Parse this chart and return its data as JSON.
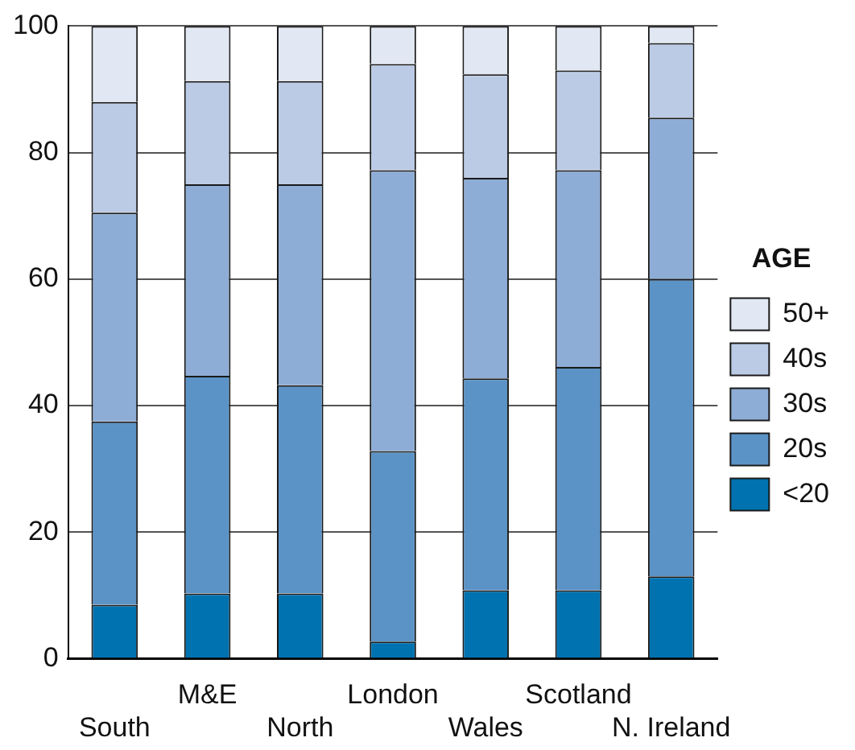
{
  "chart_data": {
    "type": "bar",
    "stacked": true,
    "legend_title": "AGE",
    "legend": "right",
    "categories": [
      "South",
      "M&E",
      "North",
      "London",
      "Wales",
      "Scotland",
      "N. Ireland"
    ],
    "series": [
      {
        "name": "<20",
        "color": "#0072b0",
        "values": [
          8.5,
          10.3,
          10.3,
          2.7,
          10.8,
          10.8,
          13
        ]
      },
      {
        "name": "20s",
        "color": "#5b93c7",
        "values": [
          29,
          34.4,
          32.9,
          30.1,
          33.5,
          35.3,
          47
        ]
      },
      {
        "name": "30s",
        "color": "#8eadd6",
        "values": [
          33,
          30.3,
          31.8,
          44.4,
          31.7,
          31.1,
          25.5
        ]
      },
      {
        "name": "40s",
        "color": "#bccbe5",
        "values": [
          17.5,
          16.3,
          16.3,
          16.8,
          16.4,
          15.8,
          11.8
        ]
      },
      {
        "name": "50+",
        "color": "#e1e8f3",
        "values": [
          12,
          8.7,
          8.7,
          6,
          7.6,
          7,
          2.7
        ]
      }
    ],
    "ylim": [
      0,
      100
    ],
    "yticks": [
      0,
      20,
      40,
      60,
      80,
      100
    ],
    "grid": "y"
  }
}
